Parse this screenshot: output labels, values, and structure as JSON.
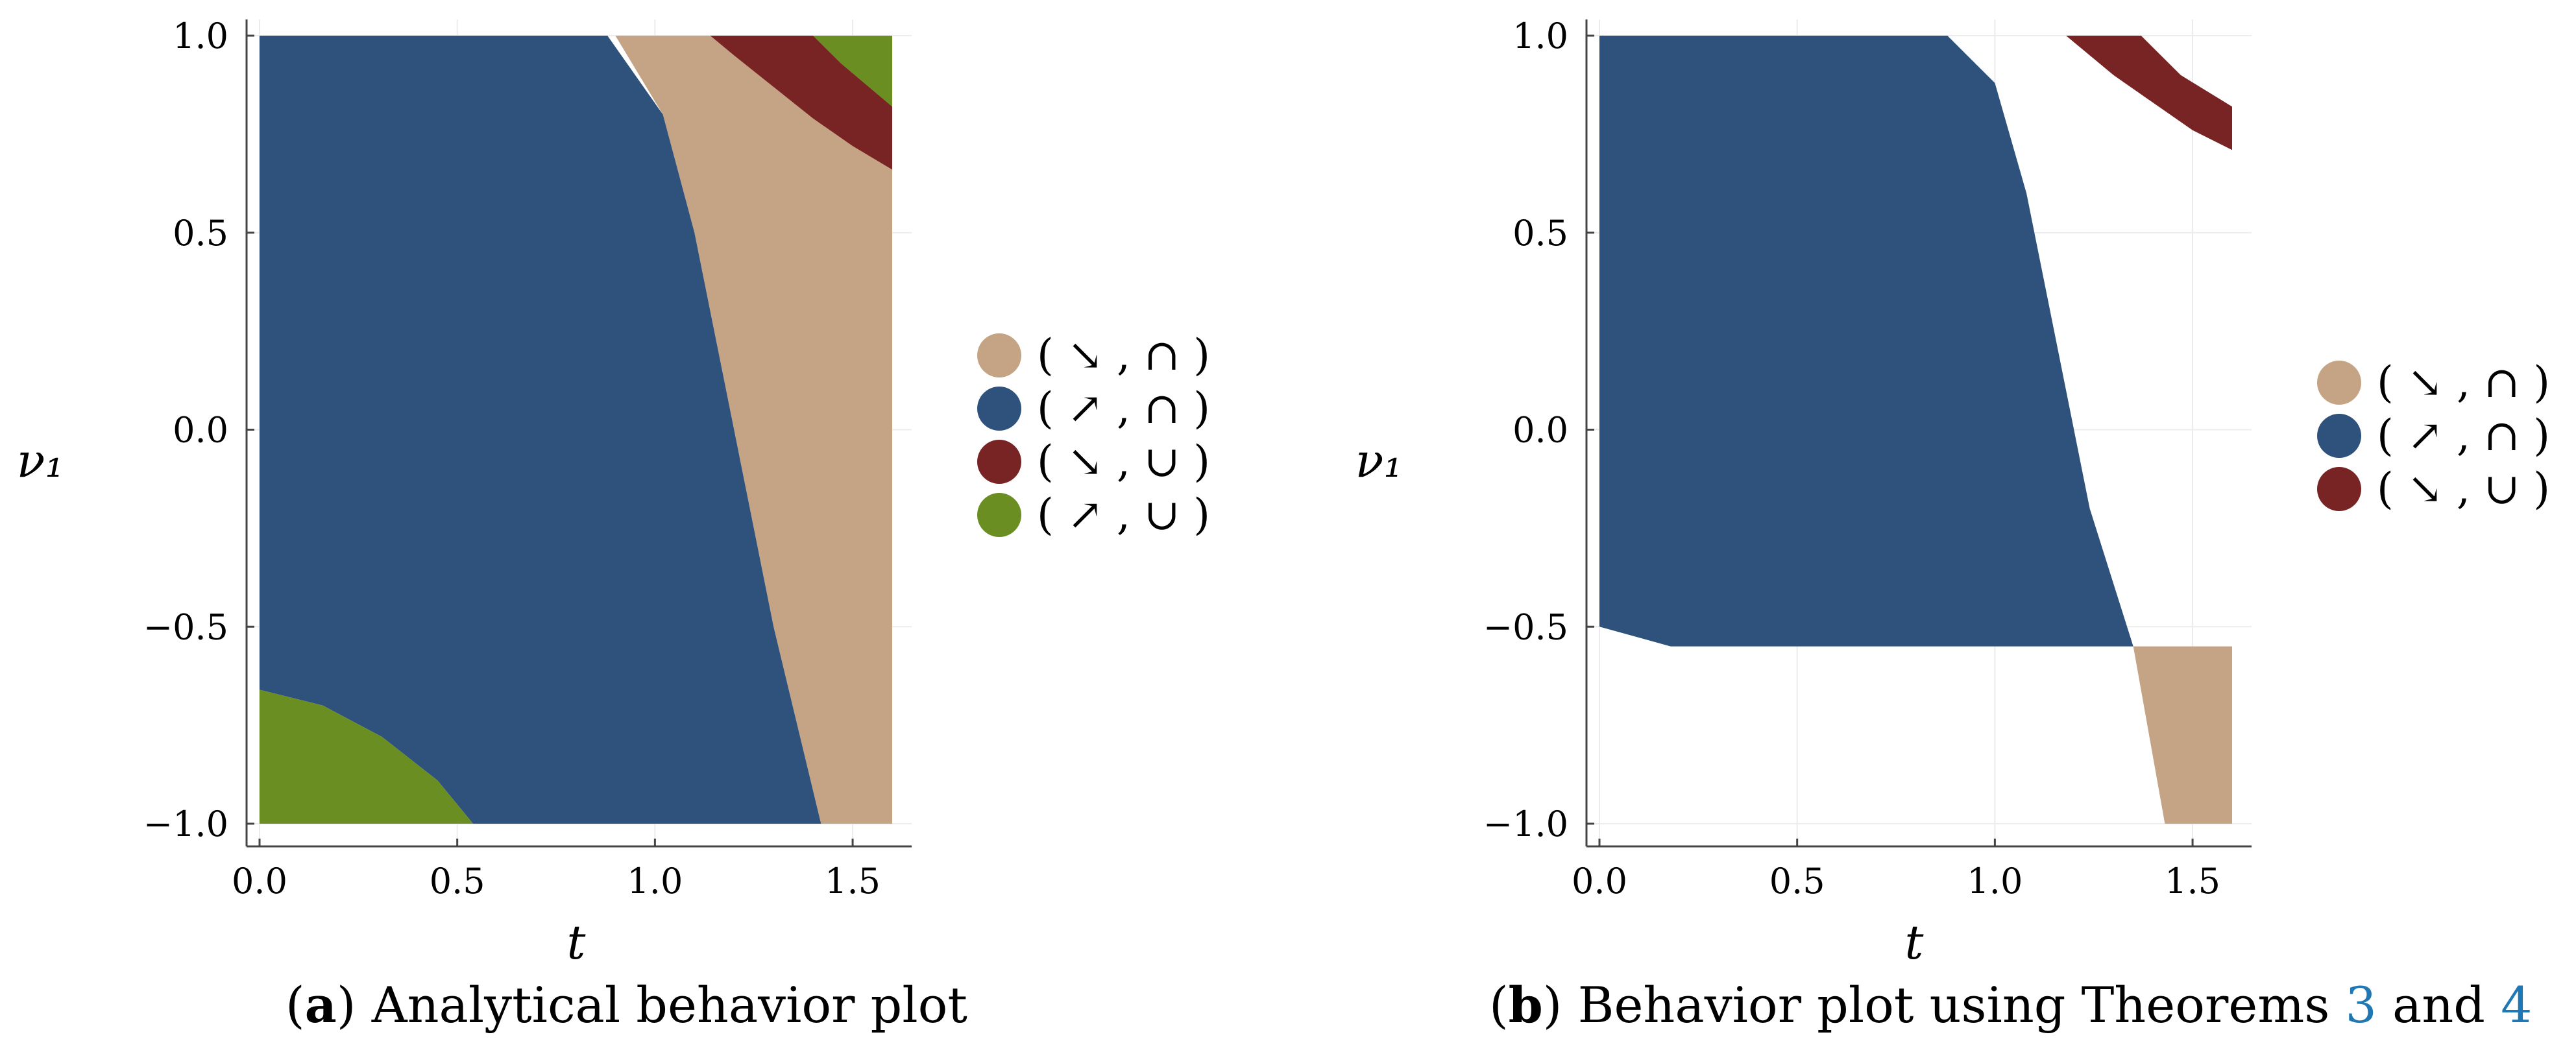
{
  "colors": {
    "tan": "#C4A484",
    "blue": "#2E527C",
    "red": "#782424",
    "green": "#6B8E23",
    "axis": "#444444",
    "grid": "#ececec",
    "ref_link": "#1f77b4"
  },
  "chart_data": [
    {
      "type": "region",
      "panel": "a",
      "xlabel": "t",
      "ylabel": "ν₁",
      "xlim": [
        0,
        1.6
      ],
      "ylim": [
        -1,
        1
      ],
      "xticks": [
        "0.0",
        "0.5",
        "1.0",
        "1.5"
      ],
      "yticks": [
        "1.0",
        "0.5",
        "0.0",
        "−0.5",
        "−1.0"
      ],
      "legend_position": "right",
      "legend": [
        {
          "label_inner": "↘ , ∩",
          "color_key": "tan"
        },
        {
          "label_inner": "↗ , ∩",
          "color_key": "blue"
        },
        {
          "label_inner": "↘ , ∪",
          "color_key": "red"
        },
        {
          "label_inner": "↗ , ∪",
          "color_key": "green"
        }
      ],
      "regions": [
        {
          "name": "tan-region",
          "color_key": "tan",
          "polygon": [
            [
              0.9,
              1
            ],
            [
              1.6,
              1
            ],
            [
              1.6,
              -1
            ],
            [
              1.42,
              -1
            ],
            [
              1.3,
              -0.5
            ],
            [
              1.2,
              0
            ],
            [
              1.1,
              0.5
            ],
            [
              1.02,
              0.8
            ]
          ]
        },
        {
          "name": "blue-region",
          "color_key": "blue",
          "polygon": [
            [
              0,
              1
            ],
            [
              0.88,
              1
            ],
            [
              1.02,
              0.8
            ],
            [
              1.1,
              0.5
            ],
            [
              1.2,
              0
            ],
            [
              1.3,
              -0.5
            ],
            [
              1.42,
              -1
            ],
            [
              0.54,
              -1
            ],
            [
              0.45,
              -0.89
            ],
            [
              0.31,
              -0.78
            ],
            [
              0.16,
              -0.7
            ],
            [
              0,
              -0.66
            ]
          ]
        },
        {
          "name": "red-region",
          "color_key": "red",
          "polygon": [
            [
              1.14,
              1
            ],
            [
              1.4,
              1
            ],
            [
              1.47,
              0.93
            ],
            [
              1.6,
              0.82
            ],
            [
              1.6,
              0.66
            ],
            [
              1.5,
              0.72
            ],
            [
              1.4,
              0.79
            ],
            [
              1.3,
              0.87
            ],
            [
              1.2,
              0.95
            ]
          ]
        },
        {
          "name": "green-region-top",
          "color_key": "green",
          "polygon": [
            [
              1.4,
              1
            ],
            [
              1.6,
              1
            ],
            [
              1.6,
              0.82
            ],
            [
              1.47,
              0.93
            ]
          ]
        },
        {
          "name": "green-region-bottom",
          "color_key": "green",
          "polygon": [
            [
              0,
              -0.66
            ],
            [
              0.16,
              -0.7
            ],
            [
              0.31,
              -0.78
            ],
            [
              0.45,
              -0.89
            ],
            [
              0.54,
              -1
            ],
            [
              0,
              -1
            ]
          ]
        }
      ]
    },
    {
      "type": "region",
      "panel": "b",
      "xlabel": "t",
      "ylabel": "ν₁",
      "xlim": [
        0,
        1.6
      ],
      "ylim": [
        -1,
        1
      ],
      "xticks": [
        "0.0",
        "0.5",
        "1.0",
        "1.5"
      ],
      "yticks": [
        "1.0",
        "0.5",
        "0.0",
        "−0.5",
        "−1.0"
      ],
      "legend_position": "right",
      "legend": [
        {
          "label_inner": "↘ , ∩",
          "color_key": "tan"
        },
        {
          "label_inner": "↗ , ∩",
          "color_key": "blue"
        },
        {
          "label_inner": "↘ , ∪",
          "color_key": "red"
        }
      ],
      "regions": [
        {
          "name": "blue-region",
          "color_key": "blue",
          "polygon": [
            [
              0,
              1
            ],
            [
              0.88,
              1
            ],
            [
              1.0,
              0.88
            ],
            [
              1.08,
              0.6
            ],
            [
              1.16,
              0.2
            ],
            [
              1.24,
              -0.2
            ],
            [
              1.35,
              -0.55
            ],
            [
              0.18,
              -0.55
            ],
            [
              0,
              -0.5
            ]
          ]
        },
        {
          "name": "tan-region",
          "color_key": "tan",
          "polygon": [
            [
              1.35,
              -0.55
            ],
            [
              1.6,
              -0.55
            ],
            [
              1.6,
              -1
            ],
            [
              1.43,
              -1
            ]
          ]
        },
        {
          "name": "red-region",
          "color_key": "red",
          "polygon": [
            [
              1.18,
              1
            ],
            [
              1.37,
              1
            ],
            [
              1.47,
              0.9
            ],
            [
              1.6,
              0.82
            ],
            [
              1.6,
              0.71
            ],
            [
              1.5,
              0.76
            ],
            [
              1.4,
              0.83
            ],
            [
              1.3,
              0.9
            ]
          ]
        }
      ]
    }
  ],
  "captions": {
    "a": {
      "letter": "a",
      "text": "Analytical behavior plot"
    },
    "b": {
      "letter": "b",
      "text": "Behavior plot using Theorems ",
      "ref1": "3",
      "and": " and ",
      "ref2": "4"
    }
  }
}
